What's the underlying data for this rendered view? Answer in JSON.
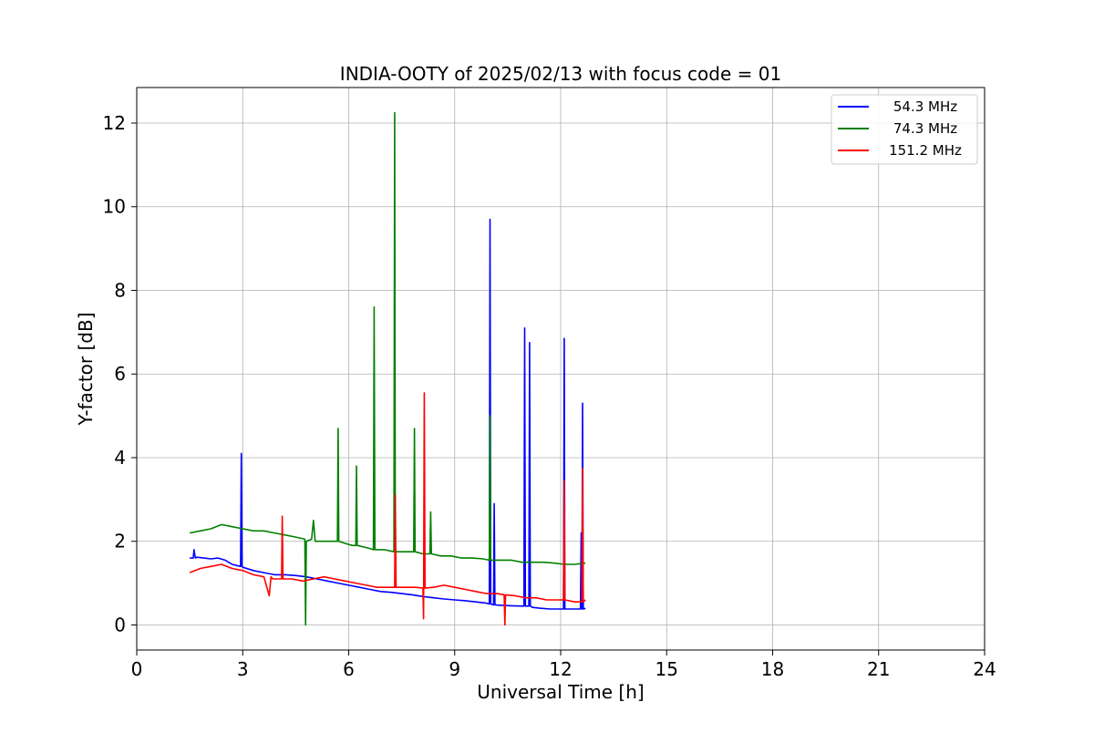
{
  "chart_data": {
    "type": "line",
    "title": "INDIA-OOTY of 2025/02/13 with focus code = 01",
    "xlabel": "Universal Time [h]",
    "ylabel": "Y-factor [dB]",
    "xlim": [
      0,
      24
    ],
    "ylim": [
      -0.6,
      12.85
    ],
    "xticks": [
      0,
      3,
      6,
      9,
      12,
      15,
      18,
      21,
      24
    ],
    "yticks": [
      0,
      2,
      4,
      6,
      8,
      10,
      12
    ],
    "grid": true,
    "legend_position": "top-right",
    "series": [
      {
        "name": "54.3 MHz",
        "color": "#0000ff",
        "x": [
          1.5,
          1.6,
          1.62,
          1.66,
          1.7,
          1.9,
          2.1,
          2.3,
          2.5,
          2.7,
          2.94,
          2.96,
          2.98,
          3.0,
          3.3,
          3.6,
          3.9,
          4.2,
          4.5,
          4.8,
          5.1,
          5.4,
          5.7,
          6.0,
          6.3,
          6.6,
          6.9,
          7.2,
          7.5,
          7.8,
          8.1,
          8.4,
          8.7,
          9.0,
          9.3,
          9.6,
          9.9,
          9.98,
          10.0,
          10.02,
          10.1,
          10.12,
          10.14,
          10.3,
          10.6,
          10.9,
          10.96,
          10.98,
          11.0,
          11.1,
          11.12,
          11.14,
          11.2,
          11.4,
          11.7,
          12.0,
          12.08,
          12.1,
          12.12,
          12.2,
          12.4,
          12.56,
          12.58,
          12.6,
          12.62,
          12.64,
          12.66,
          12.7
        ],
        "values": [
          1.6,
          1.6,
          1.8,
          1.6,
          1.62,
          1.6,
          1.58,
          1.6,
          1.55,
          1.45,
          1.4,
          4.1,
          1.4,
          1.38,
          1.3,
          1.25,
          1.2,
          1.2,
          1.18,
          1.15,
          1.1,
          1.05,
          1.0,
          0.95,
          0.9,
          0.85,
          0.8,
          0.78,
          0.75,
          0.72,
          0.68,
          0.65,
          0.62,
          0.6,
          0.58,
          0.55,
          0.52,
          0.5,
          9.7,
          0.5,
          0.48,
          2.9,
          0.48,
          0.47,
          0.46,
          0.45,
          0.45,
          7.1,
          0.45,
          0.45,
          6.75,
          0.45,
          0.42,
          0.4,
          0.38,
          0.38,
          0.38,
          6.85,
          0.38,
          0.38,
          0.38,
          0.38,
          2.2,
          0.38,
          5.3,
          0.38,
          0.38,
          0.4
        ]
      },
      {
        "name": "74.3 MHz",
        "color": "#008000",
        "x": [
          1.5,
          1.8,
          2.1,
          2.4,
          2.7,
          3.0,
          3.3,
          3.6,
          3.9,
          4.2,
          4.5,
          4.76,
          4.78,
          4.8,
          4.95,
          5.0,
          5.05,
          5.3,
          5.6,
          5.68,
          5.7,
          5.72,
          5.9,
          6.1,
          6.2,
          6.22,
          6.24,
          6.5,
          6.7,
          6.72,
          6.74,
          7.0,
          7.28,
          7.3,
          7.32,
          7.34,
          7.5,
          7.8,
          7.84,
          7.86,
          7.88,
          8.1,
          8.3,
          8.32,
          8.34,
          8.6,
          8.9,
          9.2,
          9.5,
          9.8,
          9.98,
          10.0,
          10.02,
          10.3,
          10.6,
          10.9,
          11.2,
          11.5,
          11.8,
          12.1,
          12.4,
          12.7
        ],
        "values": [
          2.2,
          2.25,
          2.3,
          2.4,
          2.35,
          2.3,
          2.25,
          2.25,
          2.2,
          2.15,
          2.1,
          2.05,
          0.0,
          2.0,
          2.05,
          2.5,
          2.0,
          2.0,
          2.0,
          2.0,
          4.7,
          2.0,
          1.95,
          1.9,
          1.9,
          3.8,
          1.9,
          1.85,
          1.8,
          7.6,
          1.8,
          1.8,
          1.75,
          12.25,
          1.75,
          1.75,
          1.75,
          1.75,
          1.75,
          4.7,
          1.75,
          1.7,
          1.7,
          2.7,
          1.7,
          1.65,
          1.65,
          1.6,
          1.6,
          1.58,
          1.55,
          5.0,
          1.55,
          1.55,
          1.55,
          1.5,
          1.5,
          1.5,
          1.48,
          1.45,
          1.45,
          1.48
        ]
      },
      {
        "name": "151.2 MHz",
        "color": "#ff0000",
        "x": [
          1.5,
          1.8,
          2.1,
          2.4,
          2.7,
          3.0,
          3.3,
          3.6,
          3.75,
          3.8,
          3.85,
          4.1,
          4.12,
          4.14,
          4.4,
          4.7,
          5.0,
          5.3,
          5.6,
          5.9,
          6.2,
          6.5,
          6.8,
          7.1,
          7.3,
          7.32,
          7.34,
          7.6,
          7.9,
          8.1,
          8.12,
          8.14,
          8.16,
          8.4,
          8.7,
          9.0,
          9.3,
          9.6,
          9.9,
          10.2,
          10.4,
          10.42,
          10.44,
          10.7,
          11.0,
          11.3,
          11.6,
          11.9,
          12.08,
          12.1,
          12.12,
          12.4,
          12.6,
          12.62,
          12.64,
          12.7
        ],
        "values": [
          1.25,
          1.35,
          1.4,
          1.45,
          1.35,
          1.3,
          1.2,
          1.15,
          0.7,
          1.15,
          1.1,
          1.1,
          2.6,
          1.1,
          1.1,
          1.05,
          1.1,
          1.15,
          1.1,
          1.05,
          1.0,
          0.95,
          0.9,
          0.9,
          0.9,
          3.1,
          0.9,
          0.9,
          0.9,
          0.88,
          0.15,
          5.55,
          0.88,
          0.9,
          0.95,
          0.9,
          0.85,
          0.8,
          0.75,
          0.75,
          0.72,
          0.0,
          0.72,
          0.7,
          0.65,
          0.65,
          0.6,
          0.6,
          0.6,
          3.45,
          0.6,
          0.55,
          0.55,
          3.75,
          0.55,
          0.6
        ]
      }
    ]
  }
}
